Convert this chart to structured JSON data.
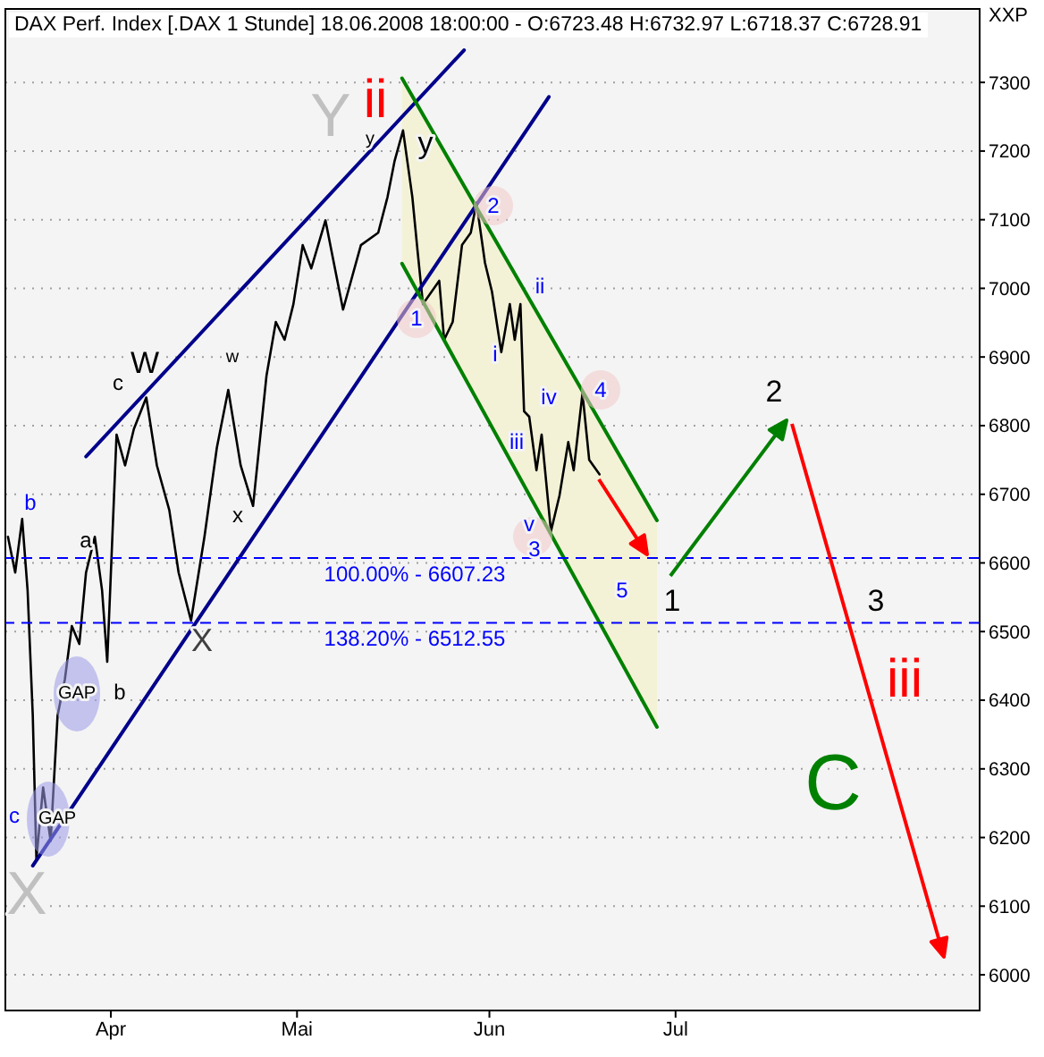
{
  "chart_data": {
    "type": "line",
    "title": "DAX Perf. Index [.DAX  1 Stunde] 18.06.2008 18:00:00 - O:6723.48 H:6732.97 L:6718.37 C:6728.91",
    "ylabel": "XXP",
    "xlim": [
      "2008-03-15",
      "2008-08-19"
    ],
    "xticks": [
      {
        "value": "2008-04-01",
        "label": "Apr"
      },
      {
        "value": "2008-05-01",
        "label": "Mai"
      },
      {
        "value": "2008-06-01",
        "label": "Jun"
      },
      {
        "value": "2008-07-01",
        "label": "Jul"
      }
    ],
    "ylim": [
      5948,
      7407
    ],
    "yticks": [
      6000,
      6100,
      6200,
      6300,
      6400,
      6500,
      6600,
      6700,
      6800,
      6900,
      7000,
      7100,
      7200,
      7300
    ],
    "grid": "y",
    "series": [
      {
        "color": "#000000",
        "x": [
          "2008-03-15T10:00",
          "2008-03-16T14:00",
          "2008-03-17T17:00",
          "2008-03-18T14:00",
          "2008-03-19T10:00",
          "2008-03-20T00:00",
          "2008-03-21T02:00",
          "2008-03-22T07:00",
          "2008-03-23T10:00",
          "2008-03-24T14:00",
          "2008-03-25T17:00",
          "2008-03-26T22:00",
          "2008-03-28T00:00",
          "2008-03-29T10:00",
          "2008-03-30T14:00",
          "2008-03-31T10:00",
          "2008-04-01T22:00",
          "2008-04-03T07:00",
          "2008-04-04T17:00",
          "2008-04-06T17:00",
          "2008-04-08T10:00",
          "2008-04-10T10:00",
          "2008-04-11T22:00",
          "2008-04-13T22:00",
          "2008-04-16T02:00",
          "2008-04-18T02:00",
          "2008-04-19T22:00",
          "2008-04-21T22:00",
          "2008-04-23T22:00",
          "2008-04-26T02:00",
          "2008-04-27T14:00",
          "2008-04-29T00:00",
          "2008-04-30T10:00",
          "2008-05-01T22:00",
          "2008-05-03T07:00",
          "2008-05-05T14:00",
          "2008-05-08T10:00",
          "2008-05-11T07:00",
          "2008-05-14T02:00",
          "2008-05-15T14:00",
          "2008-05-16T17:00",
          "2008-05-18T02:00",
          "2008-05-19T14:00",
          "2008-05-20T10:00",
          "2008-05-21T07:00",
          "2008-05-23T22:00",
          "2008-05-24T17:00",
          "2008-05-26T02:00",
          "2008-05-27T14:00",
          "2008-05-29T00:00",
          "2008-05-29T22:00",
          "2008-05-31T07:00",
          "2008-06-01T10:00",
          "2008-06-02T22:00",
          "2008-06-04T07:00",
          "2008-06-05T02:00",
          "2008-06-06T00:00",
          "2008-06-06T14:00",
          "2008-06-07T10:00",
          "2008-06-08T14:00",
          "2008-06-09T10:00",
          "2008-06-10T22:00",
          "2008-06-12T07:00",
          "2008-06-13T17:00",
          "2008-06-14T14:00",
          "2008-06-16T00:00",
          "2008-06-17T02:00",
          "2008-06-18T18:00"
        ],
        "values": [
          6638,
          6586,
          6664,
          6560,
          6378,
          6169,
          6273,
          6195,
          6378,
          6430,
          6508,
          6482,
          6586,
          6638,
          6560,
          6456,
          6787,
          6742,
          6795,
          6841,
          6742,
          6677,
          6586,
          6516,
          6638,
          6768,
          6852,
          6742,
          6683,
          6873,
          6951,
          6925,
          6977,
          7063,
          7029,
          7099,
          6969,
          7063,
          7081,
          7133,
          7185,
          7230,
          7133,
          7055,
          6977,
          7011,
          6925,
          6951,
          7063,
          7081,
          7125,
          7037,
          6995,
          6907,
          6977,
          6925,
          6977,
          6821,
          6813,
          6735,
          6787,
          6646,
          6698,
          6776,
          6735,
          6847,
          6750,
          6729
        ]
      },
      {
        "color": "#00008b",
        "x": [
          "2008-03-28T00:00",
          "2008-05-27T22:00"
        ],
        "values": [
          6755,
          7347
        ]
      },
      {
        "color": "#00008b",
        "x": [
          "2008-03-19T10:00",
          "2008-06-10T14:00"
        ],
        "values": [
          6159,
          7279
        ]
      },
      {
        "color": "#008000",
        "x": [
          "2008-05-17T22:00",
          "2008-06-28T00:00"
        ],
        "values": [
          7306,
          6662
        ],
        "lower": [
          7036,
          6361
        ],
        "upper": [
          7306,
          6662
        ]
      },
      {
        "color": "#008000",
        "x": [
          "2008-05-17T22:00",
          "2008-06-28T00:00"
        ],
        "values": [
          7036,
          6361
        ]
      }
    ],
    "ref_lines": [
      {
        "axis": "y",
        "value": 6607.23,
        "color": "#0000ff",
        "line_style": "dashed"
      },
      {
        "axis": "y",
        "value": 6512.55,
        "color": "#0000ff",
        "line_style": "dashed"
      }
    ],
    "annotations": [
      "b",
      "c",
      "X",
      "GAP",
      "GAP",
      "a",
      "b",
      "c",
      "W",
      "x",
      "X",
      "w",
      "Y",
      "ii",
      "y",
      "y",
      "1",
      "2",
      "i",
      "ii",
      "iii",
      "iv",
      "v",
      "3",
      "4",
      "5",
      "1",
      "2",
      "3",
      "iii",
      "C",
      "100.00% - 6607.23",
      "138.20% - 6512.55"
    ]
  }
}
